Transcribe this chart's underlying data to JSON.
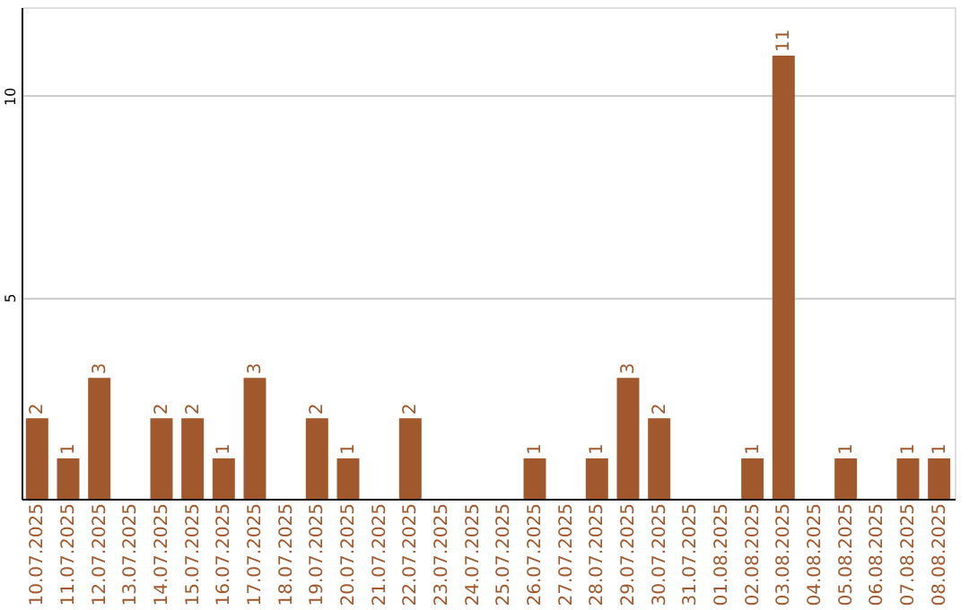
{
  "chart_data": {
    "type": "bar",
    "categories": [
      "10.07.2025",
      "11.07.2025",
      "12.07.2025",
      "13.07.2025",
      "14.07.2025",
      "15.07.2025",
      "16.07.2025",
      "17.07.2025",
      "18.07.2025",
      "19.07.2025",
      "20.07.2025",
      "21.07.2025",
      "22.07.2025",
      "23.07.2025",
      "24.07.2025",
      "25.07.2025",
      "26.07.2025",
      "27.07.2025",
      "28.07.2025",
      "29.07.2025",
      "30.07.2025",
      "31.07.2025",
      "01.08.2025",
      "02.08.2025",
      "03.08.2025",
      "04.08.2025",
      "05.08.2025",
      "06.08.2025",
      "07.08.2025",
      "08.08.2025"
    ],
    "values": [
      2,
      1,
      3,
      0,
      2,
      2,
      1,
      3,
      0,
      2,
      1,
      0,
      2,
      0,
      0,
      0,
      1,
      0,
      1,
      3,
      2,
      0,
      0,
      1,
      11,
      0,
      1,
      0,
      1,
      1
    ],
    "value_labels": [
      "2",
      "1",
      "3",
      null,
      "2",
      "2",
      "1",
      "3",
      null,
      "2",
      "1",
      null,
      "2",
      null,
      null,
      null,
      "1",
      null,
      "1",
      "3",
      "2",
      null,
      null,
      "1",
      "11",
      null,
      "1",
      null,
      "1",
      "1"
    ],
    "color": "#a0582c",
    "ylim": [
      0,
      12.2
    ],
    "yticks": [
      5,
      10
    ],
    "grid": "y"
  }
}
